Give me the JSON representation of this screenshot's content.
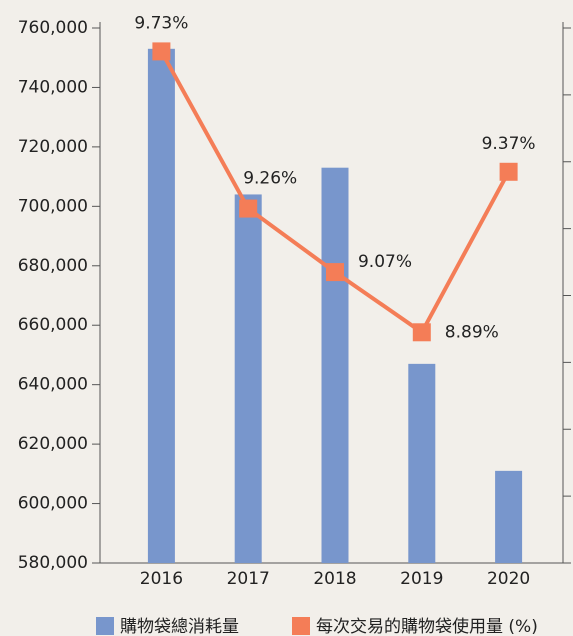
{
  "chart_data": {
    "type": "bar_line",
    "categories": [
      "2016",
      "2017",
      "2018",
      "2019",
      "2020"
    ],
    "series": [
      {
        "name": "購物袋總消耗量",
        "color": "#7896cc",
        "type": "bar",
        "values": [
          753000,
          704000,
          713000,
          647000,
          611000
        ]
      },
      {
        "name": "每次交易的購物袋使用量 (%)",
        "color": "#f47d57",
        "type": "line",
        "axis": "y2",
        "values": [
          9.73,
          9.26,
          9.07,
          8.89,
          9.37
        ],
        "value_labels": [
          "9.73%",
          "9.26%",
          "9.07%",
          "8.89%",
          "9.37%"
        ]
      }
    ],
    "ylim": [
      580000,
      760000
    ],
    "yticks": [
      {
        "value": 580000,
        "label": "580,000"
      },
      {
        "value": 600000,
        "label": "600,000"
      },
      {
        "value": 620000,
        "label": "620,000"
      },
      {
        "value": 640000,
        "label": "640,000"
      },
      {
        "value": 660000,
        "label": "660,000"
      },
      {
        "value": 680000,
        "label": "680,000"
      },
      {
        "value": 700000,
        "label": "700,000"
      },
      {
        "value": 720000,
        "label": "720,000"
      },
      {
        "value": 740000,
        "label": "740,000"
      },
      {
        "value": 760000,
        "label": "760,000"
      }
    ],
    "y2lim": [
      8.2,
      9.8
    ],
    "y2ticks": [
      8.2,
      8.4,
      8.6,
      8.8,
      9.0,
      9.2,
      9.4,
      9.6,
      9.8
    ],
    "legend": "bottom"
  }
}
